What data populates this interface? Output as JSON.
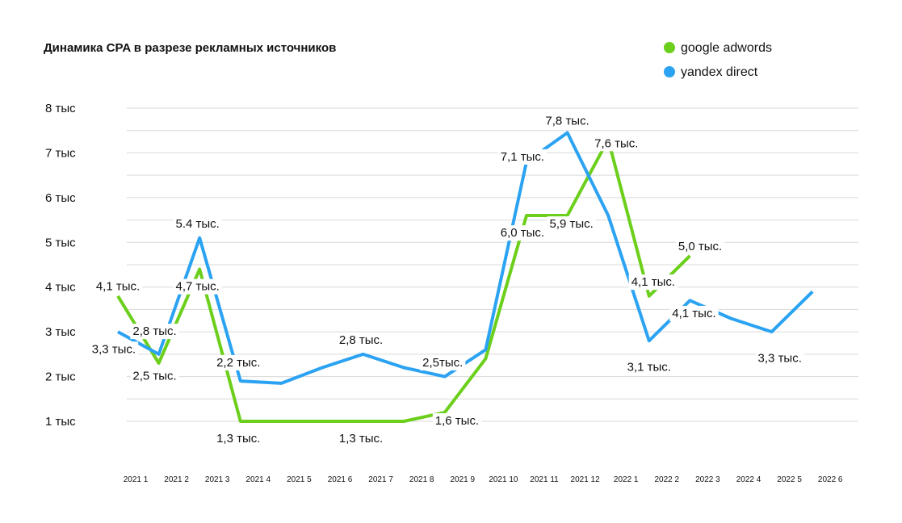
{
  "chart_data": {
    "type": "line",
    "title": "Динамика CPA в разрезе рекламных источников",
    "legend_position": "top-right",
    "grid": true,
    "ylim": [
      1,
      8
    ],
    "yticks": [
      {
        "value": 1,
        "label": "1 тыс"
      },
      {
        "value": 2,
        "label": "2 тыс"
      },
      {
        "value": 3,
        "label": "3 тыс"
      },
      {
        "value": 4,
        "label": "4 тыс"
      },
      {
        "value": 5,
        "label": "5 тыс"
      },
      {
        "value": 6,
        "label": "6 тыс"
      },
      {
        "value": 7,
        "label": "7 тыс"
      },
      {
        "value": 8,
        "label": "8 тыс"
      }
    ],
    "categories": [
      "2021 1",
      "2021 2",
      "2021 3",
      "2021 4",
      "2021 5",
      "2021 6",
      "2021 7",
      "2021 8",
      "2021 9",
      "2021 10",
      "2021 11",
      "2021 12",
      "2022 1",
      "2022 2",
      "2022 3",
      "2022 4",
      "2022 5",
      "2022 6"
    ],
    "series": [
      {
        "name": "google adwords",
        "color": "#6ccf1b",
        "values": [
          3.8,
          2.3,
          4.4,
          1.0,
          1.0,
          1.0,
          1.0,
          1.0,
          1.2,
          2.4,
          5.6,
          5.6,
          7.3,
          3.8,
          4.7,
          null,
          null,
          null
        ]
      },
      {
        "name": "yandex direct",
        "color": "#2ba3f2",
        "values": [
          3.0,
          2.5,
          5.1,
          1.9,
          1.85,
          2.2,
          2.5,
          2.2,
          2.0,
          2.6,
          6.8,
          7.45,
          5.6,
          2.8,
          3.7,
          3.3,
          3.0,
          3.9
        ]
      }
    ],
    "annotations": [
      {
        "text": "4,1 тыс.",
        "x": 0,
        "y": 4.0
      },
      {
        "text": "2,8 тыс.",
        "x": 0.9,
        "y": 3.0
      },
      {
        "text": "3,3 тыс.",
        "x": -0.1,
        "y": 2.6
      },
      {
        "text": "2,5 тыс.",
        "x": 0.9,
        "y": 2.0
      },
      {
        "text": "5.4 тыс.",
        "x": 1.95,
        "y": 5.4
      },
      {
        "text": "4,7 тыс.",
        "x": 1.95,
        "y": 4.0
      },
      {
        "text": "2,2 тыс.",
        "x": 2.95,
        "y": 2.3
      },
      {
        "text": "1,3 тыс.",
        "x": 2.95,
        "y": 0.6
      },
      {
        "text": "2,8 тыс.",
        "x": 5.95,
        "y": 2.8
      },
      {
        "text": "1,3 тыс.",
        "x": 5.95,
        "y": 0.6
      },
      {
        "text": "2,5тыс.",
        "x": 7.95,
        "y": 2.3
      },
      {
        "text": "1,6 тыс.",
        "x": 8.3,
        "y": 1.0
      },
      {
        "text": "7,1 тыс.",
        "x": 9.9,
        "y": 6.9
      },
      {
        "text": "6,0 тыс.",
        "x": 9.9,
        "y": 5.2
      },
      {
        "text": "7,8 тыс.",
        "x": 11.0,
        "y": 7.7
      },
      {
        "text": "5,9 тыс.",
        "x": 11.1,
        "y": 5.4
      },
      {
        "text": "7,6 тыс.",
        "x": 12.2,
        "y": 7.2
      },
      {
        "text": "4,1 тыс.",
        "x": 13.1,
        "y": 4.1
      },
      {
        "text": "5,0 тыс.",
        "x": 14.25,
        "y": 4.9
      },
      {
        "text": "4,1 тыс.",
        "x": 14.1,
        "y": 3.4
      },
      {
        "text": "3,1 тыс.",
        "x": 13.0,
        "y": 2.2
      },
      {
        "text": "3,3 тыс.",
        "x": 16.2,
        "y": 2.4
      }
    ]
  }
}
